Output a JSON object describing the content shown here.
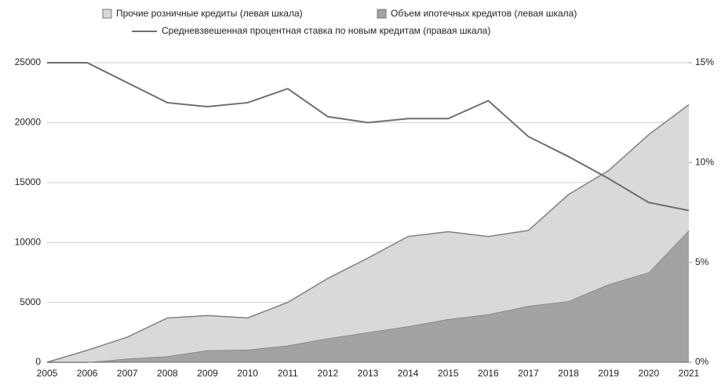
{
  "chart_data": {
    "type": "area",
    "stacked": true,
    "x": [
      2005,
      2006,
      2007,
      2008,
      2009,
      2010,
      2011,
      2012,
      2013,
      2014,
      2015,
      2016,
      2017,
      2018,
      2019,
      2020,
      2021
    ],
    "xlim": [
      2005,
      2021
    ],
    "ylim": [
      0,
      25000
    ],
    "yticks": [
      0,
      5000,
      10000,
      15000,
      20000,
      25000
    ],
    "y2lim": [
      0,
      15
    ],
    "y2ticks": [
      {
        "value": 0,
        "label": "0%"
      },
      {
        "value": 5,
        "label": "5%"
      },
      {
        "value": 10,
        "label": "10%"
      },
      {
        "value": 15,
        "label": "15%"
      }
    ],
    "grid": true,
    "series": [
      {
        "name": "Прочие розничные кредиты (левая шкала)",
        "color": "#d9d9d9",
        "values": [
          0,
          1000,
          1800,
          3200,
          2900,
          2650,
          3600,
          5000,
          6200,
          7500,
          7300,
          6500,
          6300,
          8900,
          9500,
          11500,
          10500
        ]
      },
      {
        "name": "Объем ипотечных кредитов (левая шкала)",
        "color": "#a3a3a3",
        "values": [
          0,
          0,
          300,
          500,
          1000,
          1050,
          1400,
          2000,
          2500,
          3000,
          3600,
          4000,
          4700,
          5100,
          6500,
          7500,
          11000
        ]
      },
      {
        "name": "Средневзвешенная процентная ставка по новым кредитам (правая шкала)",
        "type": "line",
        "axis": "y2",
        "color": "#6e6e6e",
        "values": [
          15,
          15,
          14.0,
          13.0,
          12.8,
          13.0,
          13.7,
          12.3,
          12.0,
          12.2,
          12.2,
          13.1,
          11.3,
          10.3,
          9.2,
          8.0,
          7.6
        ]
      }
    ]
  }
}
